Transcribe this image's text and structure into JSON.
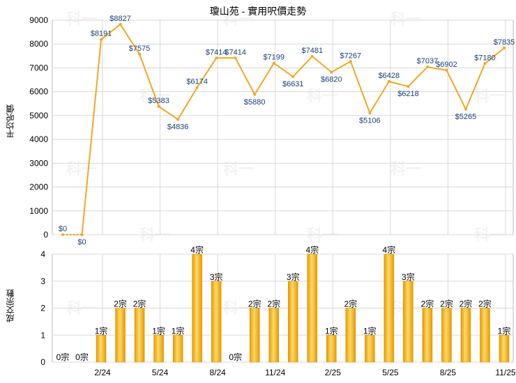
{
  "title": "瓊山苑 - 實用呎價走勢",
  "watermark": "科一",
  "colors": {
    "line": "#f5a623",
    "bar_light": "#ffd966",
    "bar_dark": "#e89a00",
    "grid": "#d8d8d8",
    "axis": "#888888"
  },
  "chart_data": [
    {
      "type": "line",
      "ylabel": "平均呎價",
      "ylim": [
        0,
        9000
      ],
      "yticks": [
        0,
        1000,
        2000,
        3000,
        4000,
        5000,
        6000,
        7000,
        8000,
        9000
      ],
      "values": [
        0,
        0,
        8191,
        8827,
        7575,
        5383,
        4836,
        6174,
        7414,
        7414,
        5880,
        7199,
        6631,
        7481,
        6820,
        7267,
        5106,
        6428,
        6218,
        7037,
        6902,
        5265,
        7180,
        7835
      ],
      "labels": [
        "$0",
        "$0",
        "$8191",
        "$8827",
        "$7575",
        "$5383",
        "$4836",
        "$6174",
        "$7414",
        "$7414",
        "$5880",
        "$7199",
        "$6631",
        "$7481",
        "$6820",
        "$7267",
        "$5106",
        "$6428",
        "$6218",
        "$7037",
        "$6902",
        "$5265",
        "$7180",
        "$7835"
      ]
    },
    {
      "type": "bar",
      "ylabel": "成交宗數",
      "ylim": [
        0,
        4
      ],
      "yticks": [
        0,
        1,
        2,
        3,
        4
      ],
      "values": [
        0,
        0,
        1,
        2,
        2,
        1,
        1,
        4,
        3,
        0,
        2,
        2,
        3,
        4,
        1,
        2,
        1,
        4,
        3,
        2,
        2,
        2,
        2,
        1
      ],
      "labels": [
        "0宗",
        "0宗",
        "1宗",
        "2宗",
        "2宗",
        "1宗",
        "1宗",
        "4宗",
        "3宗",
        "0宗",
        "2宗",
        "2宗",
        "3宗",
        "4宗",
        "1宗",
        "2宗",
        "1宗",
        "4宗",
        "3宗",
        "2宗",
        "2宗",
        "2宗",
        "2宗",
        "1宗"
      ],
      "x_tick_labels": [
        "2/24",
        "5/24",
        "8/24",
        "11/24",
        "2/25",
        "5/25",
        "8/25",
        "11/25"
      ],
      "x_tick_indices": [
        2,
        5,
        8,
        11,
        14,
        17,
        20,
        23
      ]
    }
  ]
}
